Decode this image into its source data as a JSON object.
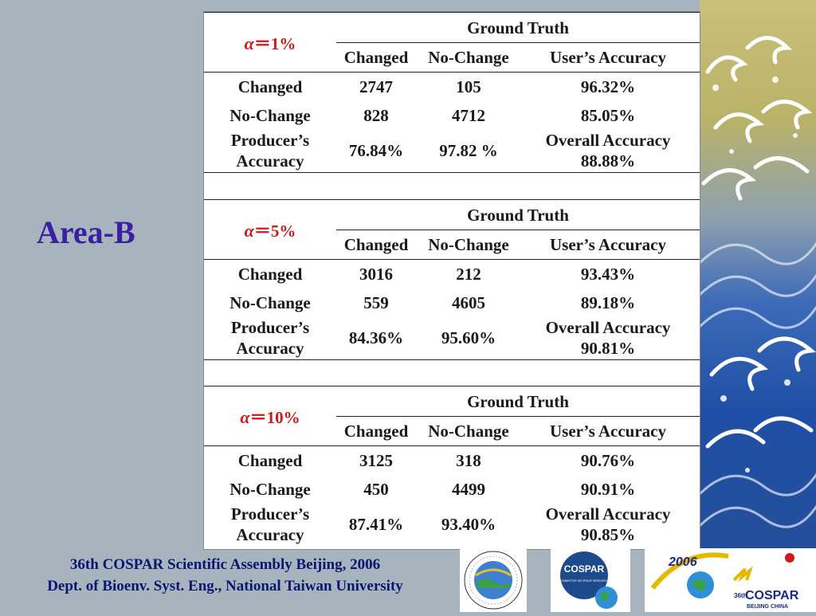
{
  "slide_title": "Area-B",
  "tables": [
    {
      "alpha_symbol": "α",
      "alpha_value": "＝1%",
      "ground_truth": "Ground Truth",
      "col_headers": [
        "Changed",
        "No-Change",
        "User’s Accuracy"
      ],
      "rows": [
        {
          "label": "Changed",
          "v1": "2747",
          "v2": "105",
          "v3": "96.32%"
        },
        {
          "label": "No-Change",
          "v1": "828",
          "v2": "4712",
          "v3": "85.05%"
        }
      ],
      "producer_label_1": "Producer’s",
      "producer_label_2": "Accuracy",
      "producer_changed": "76.84%",
      "producer_nochange": "97.82 %",
      "overall_label": "Overall Accuracy",
      "overall_value": "88.88%"
    },
    {
      "alpha_symbol": "α",
      "alpha_value": "＝5%",
      "ground_truth": "Ground Truth",
      "col_headers": [
        "Changed",
        "No-Change",
        "User’s Accuracy"
      ],
      "rows": [
        {
          "label": "Changed",
          "v1": "3016",
          "v2": "212",
          "v3": "93.43%"
        },
        {
          "label": "No-Change",
          "v1": "559",
          "v2": "4605",
          "v3": "89.18%"
        }
      ],
      "producer_label_1": "Producer’s",
      "producer_label_2": "Accuracy",
      "producer_changed": "84.36%",
      "producer_nochange": "95.60%",
      "overall_label": "Overall Accuracy",
      "overall_value": "90.81%"
    },
    {
      "alpha_symbol": "α",
      "alpha_value": "＝10%",
      "ground_truth": "Ground Truth",
      "col_headers": [
        "Changed",
        "No-Change",
        "User’s Accuracy"
      ],
      "rows": [
        {
          "label": "Changed",
          "v1": "3125",
          "v2": "318",
          "v3": "90.76%"
        },
        {
          "label": "No-Change",
          "v1": "450",
          "v2": "4499",
          "v3": "90.91%"
        }
      ],
      "producer_label_1": "Producer’s",
      "producer_label_2": "Accuracy",
      "producer_changed": "87.41%",
      "producer_nochange": "93.40%",
      "overall_label": "Overall Accuracy",
      "overall_value": "90.85%"
    }
  ],
  "footer": {
    "line1": "36th COSPAR  Scientific Assembly Beijing, 2006",
    "line2": "Dept. of Bioenv. Syst. Eng., National Taiwan University"
  },
  "logos": {
    "ntu_ring_text": "National Taiwan University · Bioenvironmental Systems Engineering",
    "cospar_text": "COSPAR",
    "cospar_sub": "COMMITTEE ON SPACE RESEARCH",
    "year": "2006",
    "assembly_num": "36",
    "assembly_sup": "th",
    "assembly_name": "COSPAR",
    "assembly_city": "BEIJING CHINA"
  },
  "colors": {
    "background": "#a7b4bd",
    "title": "#3a1fa0",
    "alpha_red": "#d01818",
    "footer_text": "#0b1670"
  }
}
